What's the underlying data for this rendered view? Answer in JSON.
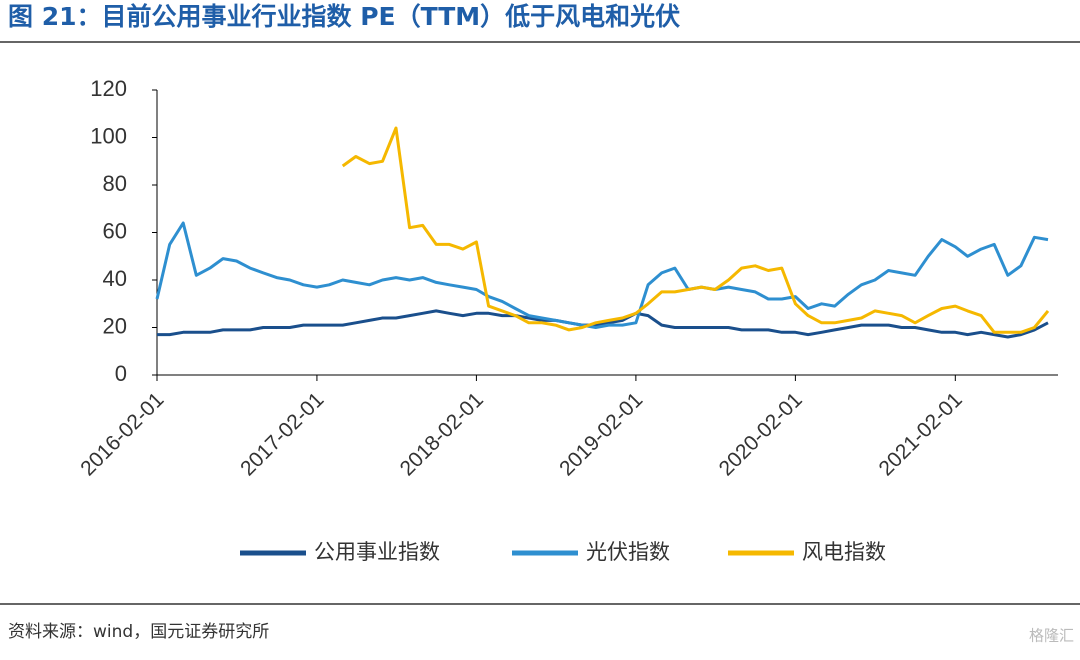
{
  "chart_data": {
    "type": "line",
    "title": "图 21：目前公用事业行业指数 PE（TTM）低于风电和光伏",
    "source": "资料来源：wind，国元证券研究所",
    "watermark": "格隆汇",
    "x": [
      "2016-02-01",
      "2016-03-01",
      "2016-04-01",
      "2016-05-01",
      "2016-06-01",
      "2016-07-01",
      "2016-08-01",
      "2016-09-01",
      "2016-10-01",
      "2016-11-01",
      "2016-12-01",
      "2017-01-01",
      "2017-02-01",
      "2017-03-01",
      "2017-04-01",
      "2017-05-01",
      "2017-06-01",
      "2017-07-01",
      "2017-08-01",
      "2017-09-01",
      "2017-10-01",
      "2017-11-01",
      "2017-12-01",
      "2018-01-01",
      "2018-02-01",
      "2018-03-01",
      "2018-04-01",
      "2018-05-01",
      "2018-06-01",
      "2018-07-01",
      "2018-08-01",
      "2018-09-01",
      "2018-10-01",
      "2018-11-01",
      "2018-12-01",
      "2019-01-01",
      "2019-02-01",
      "2019-03-01",
      "2019-04-01",
      "2019-05-01",
      "2019-06-01",
      "2019-07-01",
      "2019-08-01",
      "2019-09-01",
      "2019-10-01",
      "2019-11-01",
      "2019-12-01",
      "2020-01-01",
      "2020-02-01",
      "2020-03-01",
      "2020-04-01",
      "2020-05-01",
      "2020-06-01",
      "2020-07-01",
      "2020-08-01",
      "2020-09-01",
      "2020-10-01",
      "2020-11-01",
      "2020-12-01",
      "2021-01-01",
      "2021-02-01",
      "2021-03-01",
      "2021-04-01",
      "2021-05-01",
      "2021-06-01",
      "2021-07-01",
      "2021-08-01",
      "2021-09-01"
    ],
    "series": [
      {
        "name": "公用事业指数",
        "color": "#1a4f8c",
        "values": [
          17,
          17,
          18,
          18,
          18,
          19,
          19,
          19,
          20,
          20,
          20,
          21,
          21,
          21,
          21,
          22,
          23,
          24,
          24,
          25,
          26,
          27,
          26,
          25,
          26,
          26,
          25,
          25,
          24,
          23,
          23,
          22,
          21,
          21,
          22,
          23,
          26,
          25,
          21,
          20,
          20,
          20,
          20,
          20,
          19,
          19,
          19,
          18,
          18,
          17,
          18,
          19,
          20,
          21,
          21,
          21,
          20,
          20,
          19,
          18,
          18,
          17,
          18,
          17,
          16,
          17,
          19,
          22
        ]
      },
      {
        "name": "光伏指数",
        "color": "#2e8fd0",
        "values": [
          32,
          55,
          64,
          42,
          45,
          49,
          48,
          45,
          43,
          41,
          40,
          38,
          37,
          38,
          40,
          39,
          38,
          40,
          41,
          40,
          41,
          39,
          38,
          37,
          36,
          33,
          31,
          28,
          25,
          24,
          23,
          22,
          21,
          20,
          21,
          21,
          22,
          38,
          43,
          45,
          36,
          37,
          36,
          37,
          36,
          35,
          32,
          32,
          33,
          28,
          30,
          29,
          34,
          38,
          40,
          44,
          43,
          42,
          50,
          57,
          54,
          50,
          53,
          55,
          42,
          46,
          58,
          57
        ]
      },
      {
        "name": "风电指数",
        "color": "#f5b800",
        "values": [
          null,
          null,
          null,
          null,
          null,
          null,
          null,
          null,
          null,
          null,
          null,
          null,
          null,
          null,
          88,
          92,
          89,
          90,
          104,
          62,
          63,
          55,
          55,
          53,
          56,
          29,
          27,
          25,
          22,
          22,
          21,
          19,
          20,
          22,
          23,
          24,
          26,
          30,
          35,
          35,
          36,
          37,
          36,
          40,
          45,
          46,
          44,
          45,
          30,
          25,
          22,
          22,
          23,
          24,
          27,
          26,
          25,
          22,
          25,
          28,
          29,
          27,
          25,
          18,
          18,
          18,
          20,
          27
        ]
      }
    ],
    "xlim": [
      "2016-02-01",
      "2021-09-24"
    ],
    "xticks": [
      "2016-02-01",
      "2017-02-01",
      "2018-02-01",
      "2019-02-01",
      "2020-02-01",
      "2021-02-01"
    ],
    "ylim": [
      0,
      120
    ],
    "yticks": [
      0,
      20,
      40,
      60,
      80,
      100,
      120
    ],
    "grid": false
  }
}
